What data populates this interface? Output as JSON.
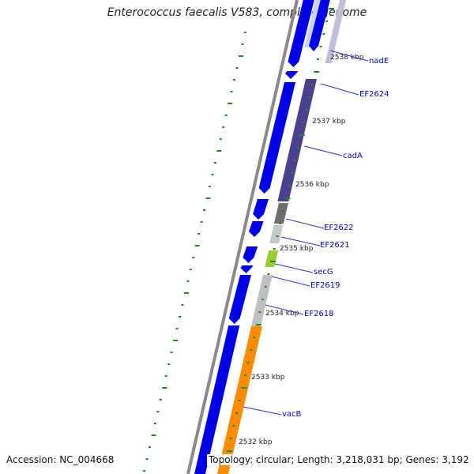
{
  "title": "Enterococcus faecalis V583, complete genome",
  "footer": {
    "accession": "Accession: NC_004668",
    "topology": "Topology: circular; Length: 3,218,031 bp; Genes: 3,192"
  },
  "colors": {
    "forward_cds": "#0000e6",
    "forward_highlight": "#c8d2ff",
    "backbone": "#888888",
    "tick": "#228B22",
    "label": "#0000cc",
    "nadE": "#c0c0d8",
    "EF2624": "#4b3f8f",
    "cadA": "#4b3f8f",
    "EF2622": "#6e6e6e",
    "EF2621": "#c8c8c8",
    "secG": "#9acd32",
    "EF2619": "#c0c0c0",
    "EF2618": "#c0c0c0",
    "vacB": "#ff8c00"
  },
  "kbp_labels": [
    "2538 kbp",
    "2537 kbp",
    "2536 kbp",
    "2535 kbp",
    "2534 kbp",
    "2533 kbp",
    "2532 kbp"
  ],
  "genes": [
    "nadE",
    "EF2624",
    "cadA",
    "EF2622",
    "EF2621",
    "secG",
    "EF2619",
    "EF2618",
    "vacB"
  ]
}
